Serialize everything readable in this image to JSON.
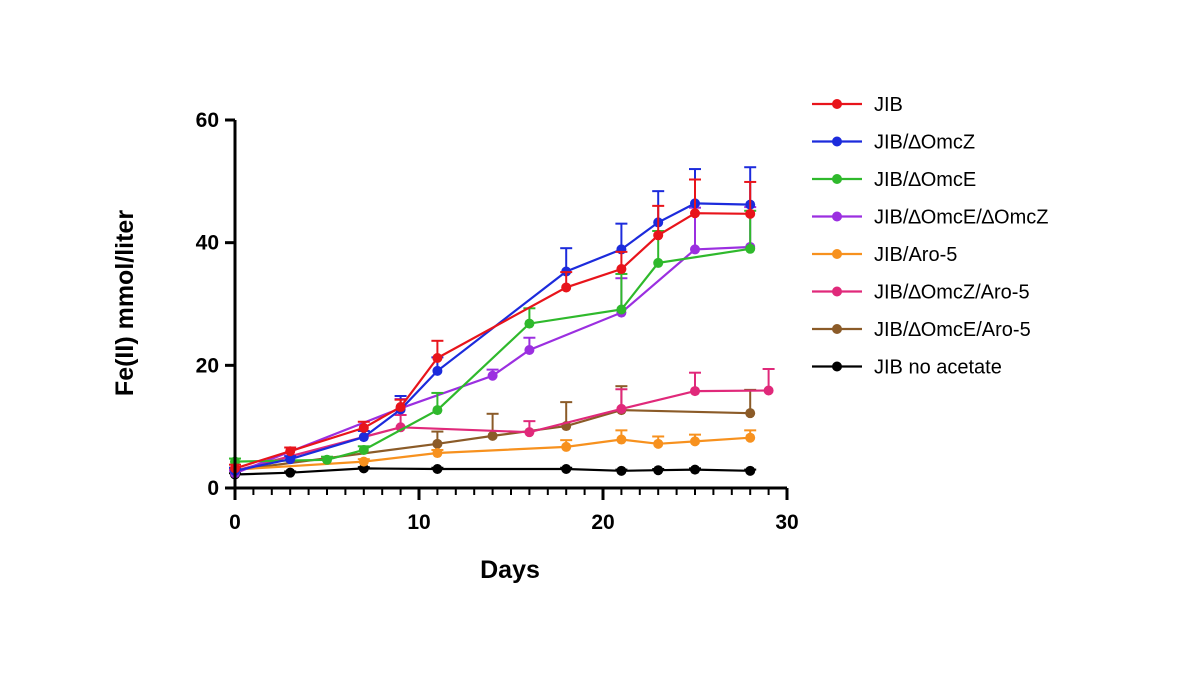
{
  "chart_data": {
    "type": "line",
    "title": "",
    "xlabel": "Days",
    "ylabel": "Fe(II) mmol/liter",
    "xlim": [
      0,
      30
    ],
    "ylim": [
      0,
      60
    ],
    "x_ticks": [
      0,
      10,
      20,
      30
    ],
    "y_ticks": [
      0,
      20,
      40,
      60
    ],
    "x_minor_step": 1,
    "grid": false,
    "legend_position": "right",
    "error_bars": true,
    "series": [
      {
        "name": "JIB",
        "color": "#e8141b",
        "x": [
          0,
          3,
          7,
          9,
          11,
          18,
          21,
          23,
          25,
          28
        ],
        "y": [
          3.2,
          6.0,
          9.8,
          13.2,
          21.2,
          32.7,
          35.7,
          41.2,
          44.8,
          44.7
        ],
        "err": [
          0.6,
          0.6,
          1.0,
          1.2,
          2.8,
          2.5,
          2.8,
          4.8,
          5.5,
          5.2
        ]
      },
      {
        "name": "JIB/∆OmcZ",
        "color": "#1c2bdc",
        "x": [
          0,
          3,
          7,
          9,
          11,
          18,
          21,
          23,
          25,
          28
        ],
        "y": [
          2.8,
          4.7,
          8.3,
          12.8,
          19.1,
          35.3,
          38.9,
          43.3,
          46.4,
          46.2
        ],
        "err": [
          0.5,
          0.5,
          1.0,
          2.2,
          2.2,
          3.8,
          4.2,
          5.1,
          5.6,
          6.1
        ]
      },
      {
        "name": "JIB/∆OmcE",
        "color": "#2fb92c",
        "x": [
          0,
          5,
          7,
          11,
          16,
          21,
          23,
          28
        ],
        "y": [
          4.3,
          4.6,
          6.2,
          12.7,
          26.8,
          29.1,
          36.7,
          39.0
        ],
        "err": [
          0.5,
          0.5,
          0.6,
          2.8,
          2.5,
          5.8,
          5.2,
          6.2
        ]
      },
      {
        "name": "JIB/∆OmcE/∆OmcZ",
        "color": "#9b2fe0",
        "x": [
          0,
          9,
          14,
          16,
          21,
          25,
          28
        ],
        "y": [
          2.4,
          13.0,
          18.3,
          22.5,
          28.6,
          38.9,
          39.3
        ],
        "err": [
          0.4,
          1.5,
          1.0,
          2.0,
          5.6,
          6.8,
          6.5
        ]
      },
      {
        "name": "JIB/Aro-5",
        "color": "#f7911e",
        "x": [
          0,
          7,
          11,
          18,
          21,
          23,
          25,
          28
        ],
        "y": [
          3.0,
          4.3,
          5.7,
          6.7,
          7.9,
          7.2,
          7.6,
          8.2
        ],
        "err": [
          0.3,
          0.4,
          0.5,
          1.1,
          1.5,
          1.2,
          1.1,
          1.2
        ]
      },
      {
        "name": "JIB/∆OmcZ/Aro-5",
        "color": "#e0297a",
        "x": [
          0,
          9,
          16,
          21,
          25,
          29
        ],
        "y": [
          2.8,
          9.9,
          9.1,
          12.9,
          15.8,
          15.9
        ],
        "err": [
          0.3,
          2.0,
          1.8,
          3.2,
          3.0,
          3.5
        ]
      },
      {
        "name": "JIB/∆OmcE/Aro-5",
        "color": "#8b5b28",
        "x": [
          0,
          11,
          14,
          18,
          21,
          28
        ],
        "y": [
          2.9,
          7.2,
          8.5,
          10.1,
          12.7,
          12.2
        ],
        "err": [
          0.3,
          2.0,
          3.6,
          3.9,
          3.9,
          3.8
        ]
      },
      {
        "name": "JIB no acetate",
        "color": "#000000",
        "x": [
          0,
          3,
          7,
          11,
          18,
          21,
          23,
          25,
          28
        ],
        "y": [
          2.2,
          2.5,
          3.2,
          3.1,
          3.1,
          2.8,
          2.9,
          3.0,
          2.8
        ],
        "err": [
          0.2,
          0.2,
          0.2,
          0.2,
          0.2,
          0.2,
          0.2,
          0.2,
          0.2
        ]
      }
    ]
  }
}
